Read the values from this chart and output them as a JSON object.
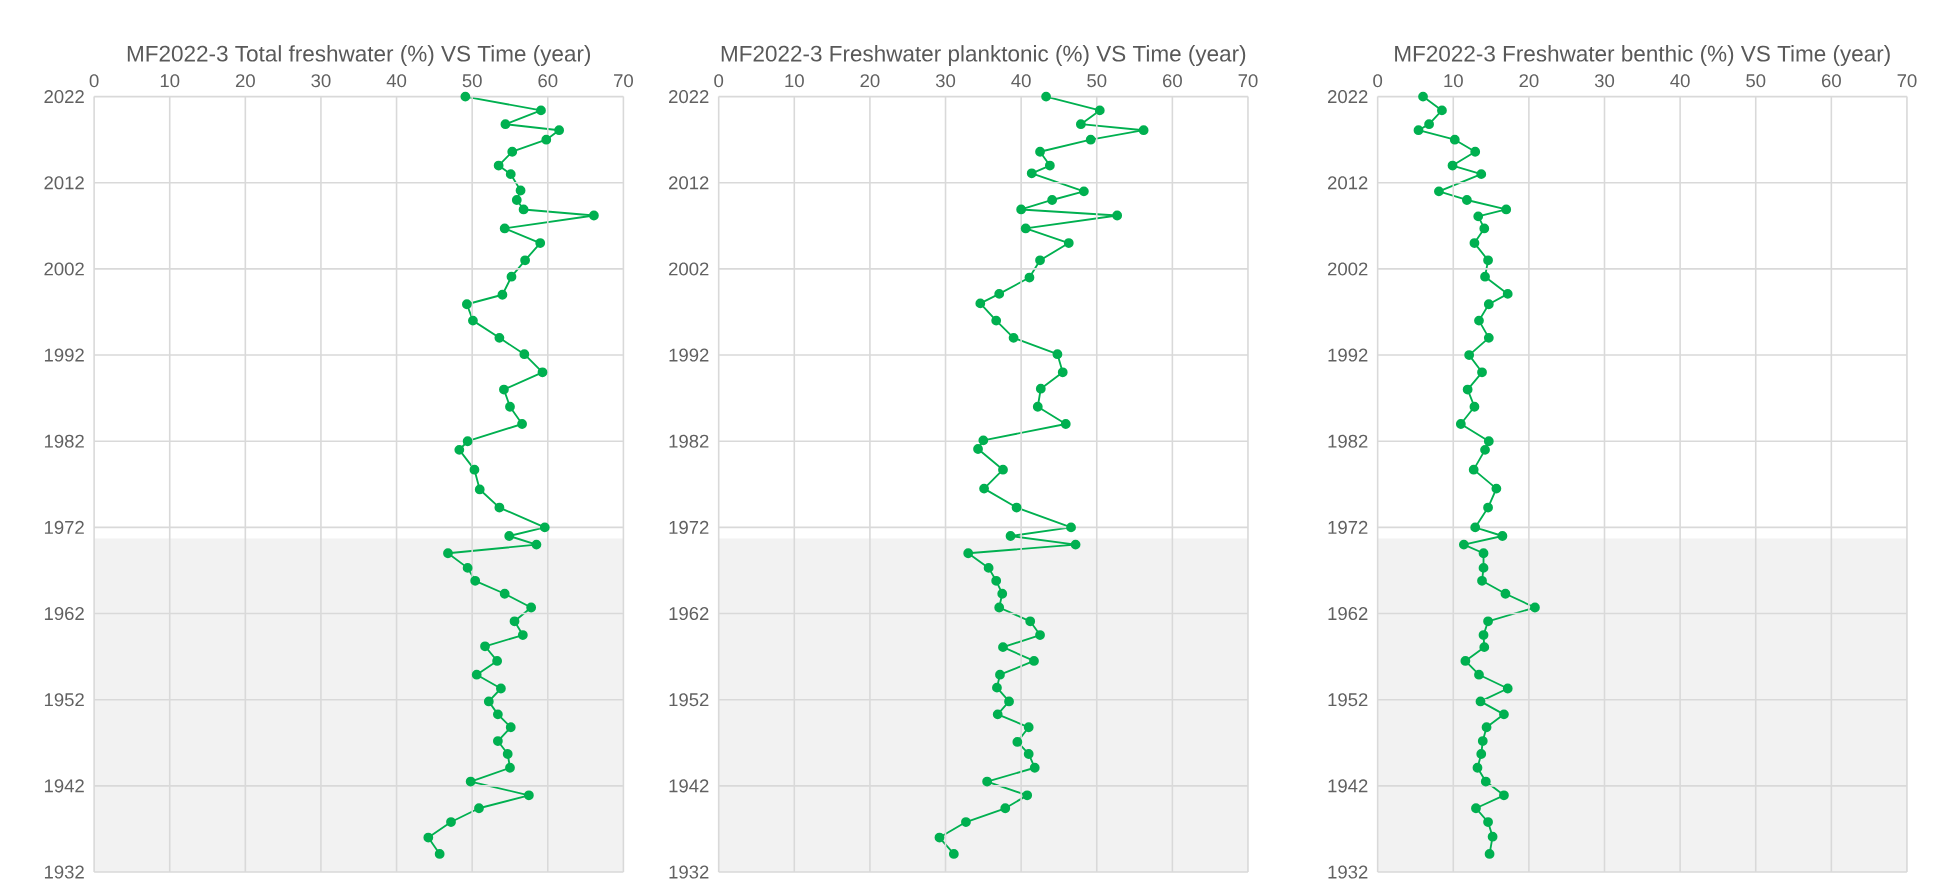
{
  "chart_data": [
    {
      "type": "line",
      "title": "MF2022-3 Total freshwater (%) VS Time (year)",
      "xlim": [
        0,
        70
      ],
      "xticks": [
        0,
        10,
        20,
        30,
        40,
        50,
        60,
        70
      ],
      "ylim": [
        1932,
        2022
      ],
      "yticks": [
        1932,
        1942,
        1952,
        1962,
        1972,
        1982,
        1992,
        2002,
        2012,
        2022
      ],
      "grid": true,
      "marker": "circle",
      "line_style": "solid",
      "bands": [
        {
          "axis": "y",
          "from": 1932,
          "to": 1970.7,
          "color": "#f2f2f2"
        }
      ],
      "series": [
        {
          "color": "#00b050",
          "x": [
            49.1,
            59.1,
            54.4,
            61.5,
            59.8,
            55.3,
            53.5,
            55.1,
            56.4,
            55.9,
            56.8,
            66.1,
            54.3,
            59.0,
            57.0,
            55.2,
            54.0,
            49.3,
            50.1,
            53.6,
            56.9,
            59.3,
            54.2,
            55.0,
            56.6,
            49.4,
            48.3,
            50.3,
            51.0,
            53.6,
            59.6,
            54.9,
            58.5,
            46.8,
            49.4,
            50.4,
            54.3,
            57.8,
            55.6,
            56.7,
            51.7,
            53.3,
            50.6,
            53.8,
            52.2,
            53.4,
            55.1,
            53.4,
            54.7,
            55.0,
            49.8,
            57.5,
            50.9,
            47.2,
            44.2,
            45.7
          ],
          "values": [
            2022,
            2020.4,
            2018.8,
            2018.1,
            2017,
            2015.6,
            2014,
            2013,
            2011.1,
            2010,
            2008.9,
            2008.2,
            2006.7,
            2005,
            2003,
            2001.1,
            1999,
            1997.9,
            1996,
            1994,
            1992.1,
            1990,
            1988,
            1986,
            1984,
            1982,
            1981,
            1978.7,
            1976.4,
            1974.3,
            1972,
            1971,
            1970,
            1969,
            1967.3,
            1965.8,
            1964.3,
            1962.7,
            1961.1,
            1959.5,
            1958.2,
            1956.5,
            1954.9,
            1953.3,
            1951.8,
            1950.3,
            1948.8,
            1947.2,
            1945.7,
            1944.1,
            1942.5,
            1940.9,
            1939.4,
            1937.8,
            1936,
            1934.1
          ]
        }
      ]
    },
    {
      "type": "line",
      "title": "MF2022-3 Freshwater planktonic (%) VS Time (year)",
      "xlim": [
        0,
        70
      ],
      "xticks": [
        0,
        10,
        20,
        30,
        40,
        50,
        60,
        70
      ],
      "ylim": [
        1932,
        2022
      ],
      "yticks": [
        1932,
        1942,
        1952,
        1962,
        1972,
        1982,
        1992,
        2002,
        2012,
        2022
      ],
      "grid": true,
      "marker": "circle",
      "line_style": "solid",
      "bands": [
        {
          "axis": "y",
          "from": 1932,
          "to": 1970.7,
          "color": "#f2f2f2"
        }
      ],
      "series": [
        {
          "color": "#00b050",
          "x": [
            43.3,
            50.4,
            47.9,
            56.2,
            49.2,
            42.5,
            43.8,
            41.4,
            48.3,
            44.1,
            40.0,
            52.7,
            40.6,
            46.3,
            42.5,
            41.1,
            37.1,
            34.6,
            36.7,
            39.0,
            44.8,
            45.5,
            42.6,
            42.2,
            45.9,
            35.0,
            34.3,
            37.6,
            35.1,
            39.4,
            46.6,
            38.6,
            47.2,
            33.0,
            35.7,
            36.7,
            37.5,
            37.1,
            41.2,
            42.5,
            37.6,
            41.7,
            37.2,
            36.8,
            38.4,
            36.9,
            41.0,
            39.5,
            41.0,
            41.8,
            35.5,
            40.8,
            37.9,
            32.7,
            29.2,
            31.1
          ],
          "values": [
            2022,
            2020.4,
            2018.8,
            2018.1,
            2017,
            2015.6,
            2014,
            2013.1,
            2011,
            2010,
            2008.9,
            2008.2,
            2006.7,
            2005,
            2003,
            2001,
            1999.1,
            1998,
            1996,
            1994,
            1992.1,
            1990,
            1988.1,
            1986,
            1984,
            1982.1,
            1981.1,
            1978.7,
            1976.5,
            1974.3,
            1972,
            1971,
            1970,
            1969,
            1967.3,
            1965.8,
            1964.3,
            1962.7,
            1961.1,
            1959.5,
            1958.1,
            1956.5,
            1954.9,
            1953.4,
            1951.8,
            1950.3,
            1948.8,
            1947.1,
            1945.7,
            1944.1,
            1942.5,
            1940.9,
            1939.4,
            1937.8,
            1936,
            1934.1
          ]
        }
      ]
    },
    {
      "type": "line",
      "title": "MF2022-3 Freshwater benthic (%) VS Time (year)",
      "xlim": [
        0,
        70
      ],
      "xticks": [
        0,
        10,
        20,
        30,
        40,
        50,
        60,
        70
      ],
      "ylim": [
        1932,
        2022
      ],
      "yticks": [
        1932,
        1942,
        1952,
        1962,
        1972,
        1982,
        1992,
        2002,
        2012,
        2022
      ],
      "grid": true,
      "marker": "circle",
      "line_style": "solid",
      "bands": [
        {
          "axis": "y",
          "from": 1932,
          "to": 1970.7,
          "color": "#f2f2f2"
        }
      ],
      "series": [
        {
          "color": "#00b050",
          "x": [
            6.0,
            8.5,
            6.8,
            5.4,
            10.2,
            12.9,
            9.9,
            13.7,
            8.1,
            11.8,
            17.0,
            13.3,
            14.1,
            12.8,
            14.6,
            14.2,
            17.2,
            14.7,
            13.4,
            14.7,
            12.1,
            13.8,
            11.9,
            12.8,
            11.0,
            14.7,
            14.2,
            12.7,
            15.7,
            14.6,
            12.9,
            16.5,
            11.4,
            14.0,
            14.0,
            13.8,
            16.9,
            20.8,
            14.6,
            14.0,
            14.1,
            11.6,
            13.4,
            17.2,
            13.6,
            16.7,
            14.4,
            13.9,
            13.7,
            13.2,
            14.3,
            16.7,
            13.0,
            14.6,
            15.2,
            14.8
          ],
          "values": [
            2022,
            2020.4,
            2018.8,
            2018.1,
            2017,
            2015.6,
            2014,
            2013,
            2011,
            2010,
            2008.9,
            2008.1,
            2006.7,
            2005,
            2003,
            2001.1,
            1999.1,
            1997.9,
            1996,
            1994,
            1992,
            1990,
            1988,
            1986,
            1984,
            1982,
            1981,
            1978.7,
            1976.5,
            1974.3,
            1972,
            1971,
            1970,
            1969,
            1967.3,
            1965.8,
            1964.3,
            1962.7,
            1961.1,
            1959.5,
            1958.1,
            1956.5,
            1954.9,
            1953.3,
            1951.8,
            1950.3,
            1948.8,
            1947.2,
            1945.7,
            1944.1,
            1942.5,
            1940.9,
            1939.4,
            1937.8,
            1936.1,
            1934.1
          ]
        }
      ]
    }
  ]
}
